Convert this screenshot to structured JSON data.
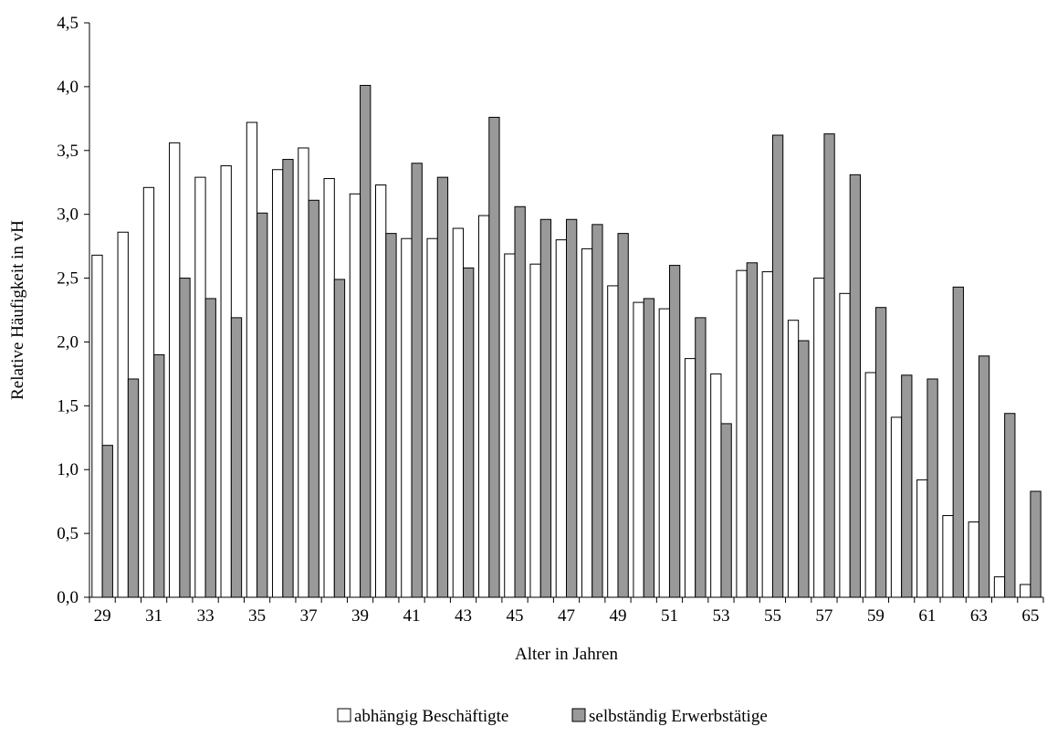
{
  "chart_data": {
    "type": "bar",
    "title": "",
    "xlabel": "Alter in Jahren",
    "ylabel": "Relative Häufigkeit in vH",
    "ylim": [
      0,
      4.5
    ],
    "ytick_values": [
      0,
      0.5,
      1.0,
      1.5,
      2.0,
      2.5,
      3.0,
      3.5,
      4.0,
      4.5
    ],
    "ytick_labels": [
      "0,0",
      "0,5",
      "1,0",
      "1,5",
      "2,0",
      "2,5",
      "3,0",
      "3,5",
      "4,0",
      "4,5"
    ],
    "categories": [
      29,
      30,
      31,
      32,
      33,
      34,
      35,
      36,
      37,
      38,
      39,
      40,
      41,
      42,
      43,
      44,
      45,
      46,
      47,
      48,
      49,
      50,
      51,
      52,
      53,
      54,
      55,
      56,
      57,
      58,
      59,
      60,
      61,
      62,
      63,
      64,
      65
    ],
    "xtick_labels": [
      "29",
      "31",
      "33",
      "35",
      "37",
      "39",
      "41",
      "43",
      "45",
      "47",
      "49",
      "51",
      "53",
      "55",
      "57",
      "59",
      "61",
      "63",
      "65"
    ],
    "grid": false,
    "legend_position": "bottom",
    "series": [
      {
        "name": "abhängig Beschäftigte",
        "color": "#ffffff",
        "values": [
          2.68,
          2.86,
          3.21,
          3.56,
          3.29,
          3.38,
          3.72,
          3.35,
          3.52,
          3.28,
          3.16,
          3.23,
          2.81,
          2.81,
          2.89,
          2.99,
          2.69,
          2.61,
          2.8,
          2.73,
          2.44,
          2.31,
          2.26,
          1.87,
          1.75,
          2.56,
          2.55,
          2.17,
          2.5,
          2.38,
          1.76,
          1.41,
          0.92,
          0.64,
          0.59,
          0.16,
          0.1
        ]
      },
      {
        "name": "selbständig Erwerbstätige",
        "color": "#999999",
        "values": [
          1.19,
          1.71,
          1.9,
          2.5,
          2.34,
          2.19,
          3.01,
          3.43,
          3.11,
          2.49,
          4.01,
          2.85,
          3.4,
          3.29,
          2.58,
          3.76,
          3.06,
          2.96,
          2.96,
          2.92,
          2.85,
          2.34,
          2.6,
          2.19,
          1.36,
          2.62,
          3.62,
          2.01,
          3.63,
          3.31,
          2.27,
          1.74,
          1.71,
          2.43,
          1.89,
          1.44,
          0.83
        ]
      }
    ]
  }
}
